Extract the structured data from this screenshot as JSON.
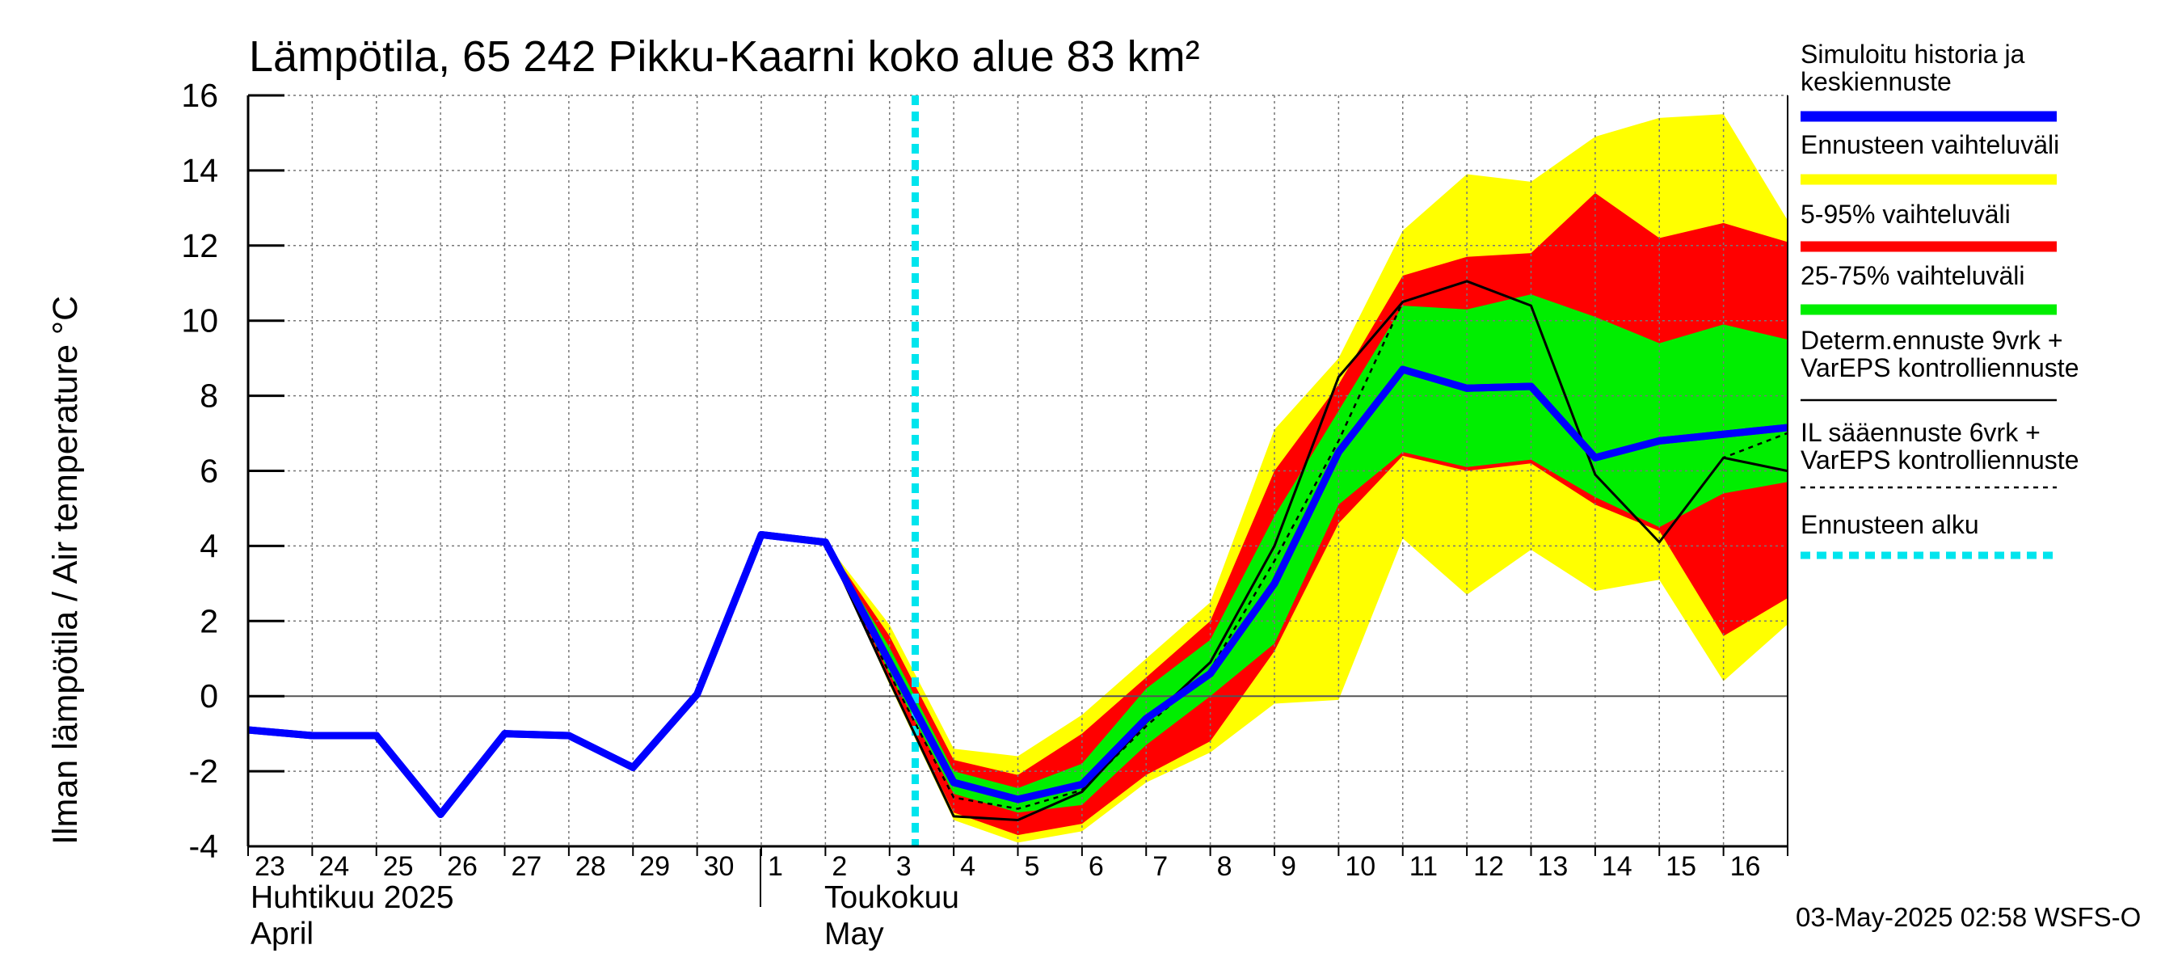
{
  "chart_data": {
    "type": "area",
    "title": "Lämpötila, 65 242 Pikku-Kaarni koko alue 83 km²",
    "ylabel": "Ilman lämpötila / Air temperature   °C",
    "ylim": [
      -4,
      16
    ],
    "yticks": [
      "16",
      "14",
      "12",
      "10",
      "8",
      "6",
      "4",
      "2",
      "0",
      "-2",
      "-4"
    ],
    "ytick_values": [
      16,
      14,
      12,
      10,
      8,
      6,
      4,
      2,
      0,
      -2,
      -4
    ],
    "x_days": [
      "23",
      "24",
      "25",
      "26",
      "27",
      "28",
      "29",
      "30",
      "1",
      "2",
      "3",
      "4",
      "5",
      "6",
      "7",
      "8",
      "9",
      "10",
      "11",
      "12",
      "13",
      "14",
      "15",
      "16"
    ],
    "month_labels": {
      "april_fi": "Huhtikuu  2025",
      "april_en": "April",
      "may_fi": "Toukokuu",
      "may_en": "May"
    },
    "forecast_start_day": 10.4,
    "grid": true,
    "legend_position": "right",
    "timestamp": "03-May-2025 02:58 WSFS-O",
    "colors": {
      "history": "#0000ff",
      "range": "#ffff00",
      "p5_95": "#ff0000",
      "p25_75": "#00ee00",
      "determ": "#000000",
      "il": "#000000",
      "start": "#00e5ee"
    },
    "legend": [
      {
        "label_lines": [
          "Simuloitu historia ja",
          "keskiennuste"
        ],
        "key": "history",
        "style": "thick"
      },
      {
        "label_lines": [
          "Ennusteen vaihteluväli"
        ],
        "key": "range",
        "style": "thick"
      },
      {
        "label_lines": [
          "5-95% vaihteluväli"
        ],
        "key": "p5_95",
        "style": "thick"
      },
      {
        "label_lines": [
          "25-75% vaihteluväli"
        ],
        "key": "p25_75",
        "style": "thick"
      },
      {
        "label_lines": [
          "Determ.ennuste 9vrk +",
          "VarEPS kontrolliennuste"
        ],
        "key": "determ",
        "style": "thin"
      },
      {
        "label_lines": [
          "IL sääennuste 6vrk  +",
          "  VarEPS kontrolliennuste"
        ],
        "key": "il",
        "style": "dashed"
      },
      {
        "label_lines": [
          "Ennusteen alku"
        ],
        "key": "start",
        "style": "dotted"
      }
    ],
    "series": [
      {
        "name": "Simuloitu historia ja keskiennuste",
        "key": "history",
        "x": [
          0,
          1,
          2,
          3,
          4,
          5,
          6,
          7,
          8,
          9,
          10,
          11,
          12,
          13,
          14,
          15,
          16,
          17,
          18,
          19,
          20,
          21,
          22,
          23.99
        ],
        "values": [
          -0.9,
          -1.05,
          -1.05,
          -3.15,
          -1.0,
          -1.05,
          -1.9,
          0.05,
          4.3,
          4.1,
          0.9,
          -2.3,
          -2.75,
          -2.35,
          -0.6,
          0.6,
          3.0,
          6.5,
          8.7,
          8.2,
          8.25,
          6.35,
          6.8,
          7.15
        ]
      },
      {
        "name": "Determ.ennuste 9vrk + VarEPS kontrolliennuste",
        "key": "determ",
        "x": [
          8,
          9,
          10,
          11,
          12,
          13,
          14,
          15,
          16,
          17,
          18,
          19,
          20,
          21,
          22,
          23,
          23.99
        ],
        "values": [
          4.3,
          4.1,
          0.4,
          -3.2,
          -3.3,
          -2.55,
          -0.7,
          0.9,
          4.0,
          8.5,
          10.5,
          11.05,
          10.4,
          5.9,
          4.1,
          6.35,
          6.0
        ]
      },
      {
        "name": "IL sääennuste 6vrk + VarEPS kontrolliennuste",
        "key": "il",
        "x": [
          9,
          10,
          11,
          12,
          13,
          14,
          15,
          16,
          17,
          18,
          19,
          20,
          21,
          22,
          23,
          23.99
        ],
        "values": [
          4.1,
          0.6,
          -2.7,
          -3.0,
          -2.5,
          -0.8,
          0.7,
          3.6,
          6.8,
          10.5,
          11.05,
          10.4,
          5.9,
          4.1,
          6.35,
          7.0
        ]
      }
    ],
    "bands": [
      {
        "name": "Ennusteen vaihteluväli",
        "key": "range",
        "x": [
          9,
          10,
          11,
          12,
          13,
          14,
          15,
          16,
          17,
          18,
          19,
          20,
          21,
          22,
          23,
          23.99
        ],
        "low": [
          4.1,
          0.3,
          -3.3,
          -3.9,
          -3.6,
          -2.3,
          -1.5,
          -0.2,
          -0.1,
          4.2,
          2.7,
          3.9,
          2.8,
          3.1,
          0.4,
          1.9
        ],
        "high": [
          4.1,
          1.9,
          -1.4,
          -1.6,
          -0.5,
          1.0,
          2.5,
          7.1,
          9.0,
          12.4,
          13.9,
          13.7,
          14.9,
          15.4,
          15.5,
          12.7
        ]
      },
      {
        "name": "5-95% vaihteluväli",
        "key": "p5_95",
        "x": [
          9,
          10,
          11,
          12,
          13,
          14,
          15,
          16,
          17,
          18,
          19,
          20,
          21,
          22,
          23,
          23.99
        ],
        "low": [
          4.1,
          0.4,
          -3.1,
          -3.7,
          -3.4,
          -2.1,
          -1.2,
          1.2,
          4.6,
          6.4,
          6.0,
          6.2,
          5.1,
          4.4,
          1.6,
          2.6
        ],
        "high": [
          4.1,
          1.6,
          -1.7,
          -2.1,
          -1.0,
          0.5,
          2.0,
          6.0,
          8.3,
          11.2,
          11.7,
          11.8,
          13.4,
          12.2,
          12.6,
          12.1
        ]
      },
      {
        "name": "25-75% vaihteluväli",
        "key": "p25_75",
        "x": [
          9,
          10,
          11,
          12,
          13,
          14,
          15,
          16,
          17,
          18,
          19,
          20,
          21,
          22,
          23,
          23.99
        ],
        "low": [
          4.1,
          0.6,
          -2.6,
          -3.1,
          -2.9,
          -1.3,
          0.0,
          1.4,
          5.1,
          6.5,
          6.1,
          6.3,
          5.3,
          4.5,
          5.4,
          5.7
        ],
        "high": [
          4.1,
          1.3,
          -2.0,
          -2.45,
          -1.8,
          0.2,
          1.5,
          4.8,
          7.6,
          10.4,
          10.3,
          10.7,
          10.1,
          9.4,
          9.9,
          9.5
        ]
      }
    ]
  }
}
